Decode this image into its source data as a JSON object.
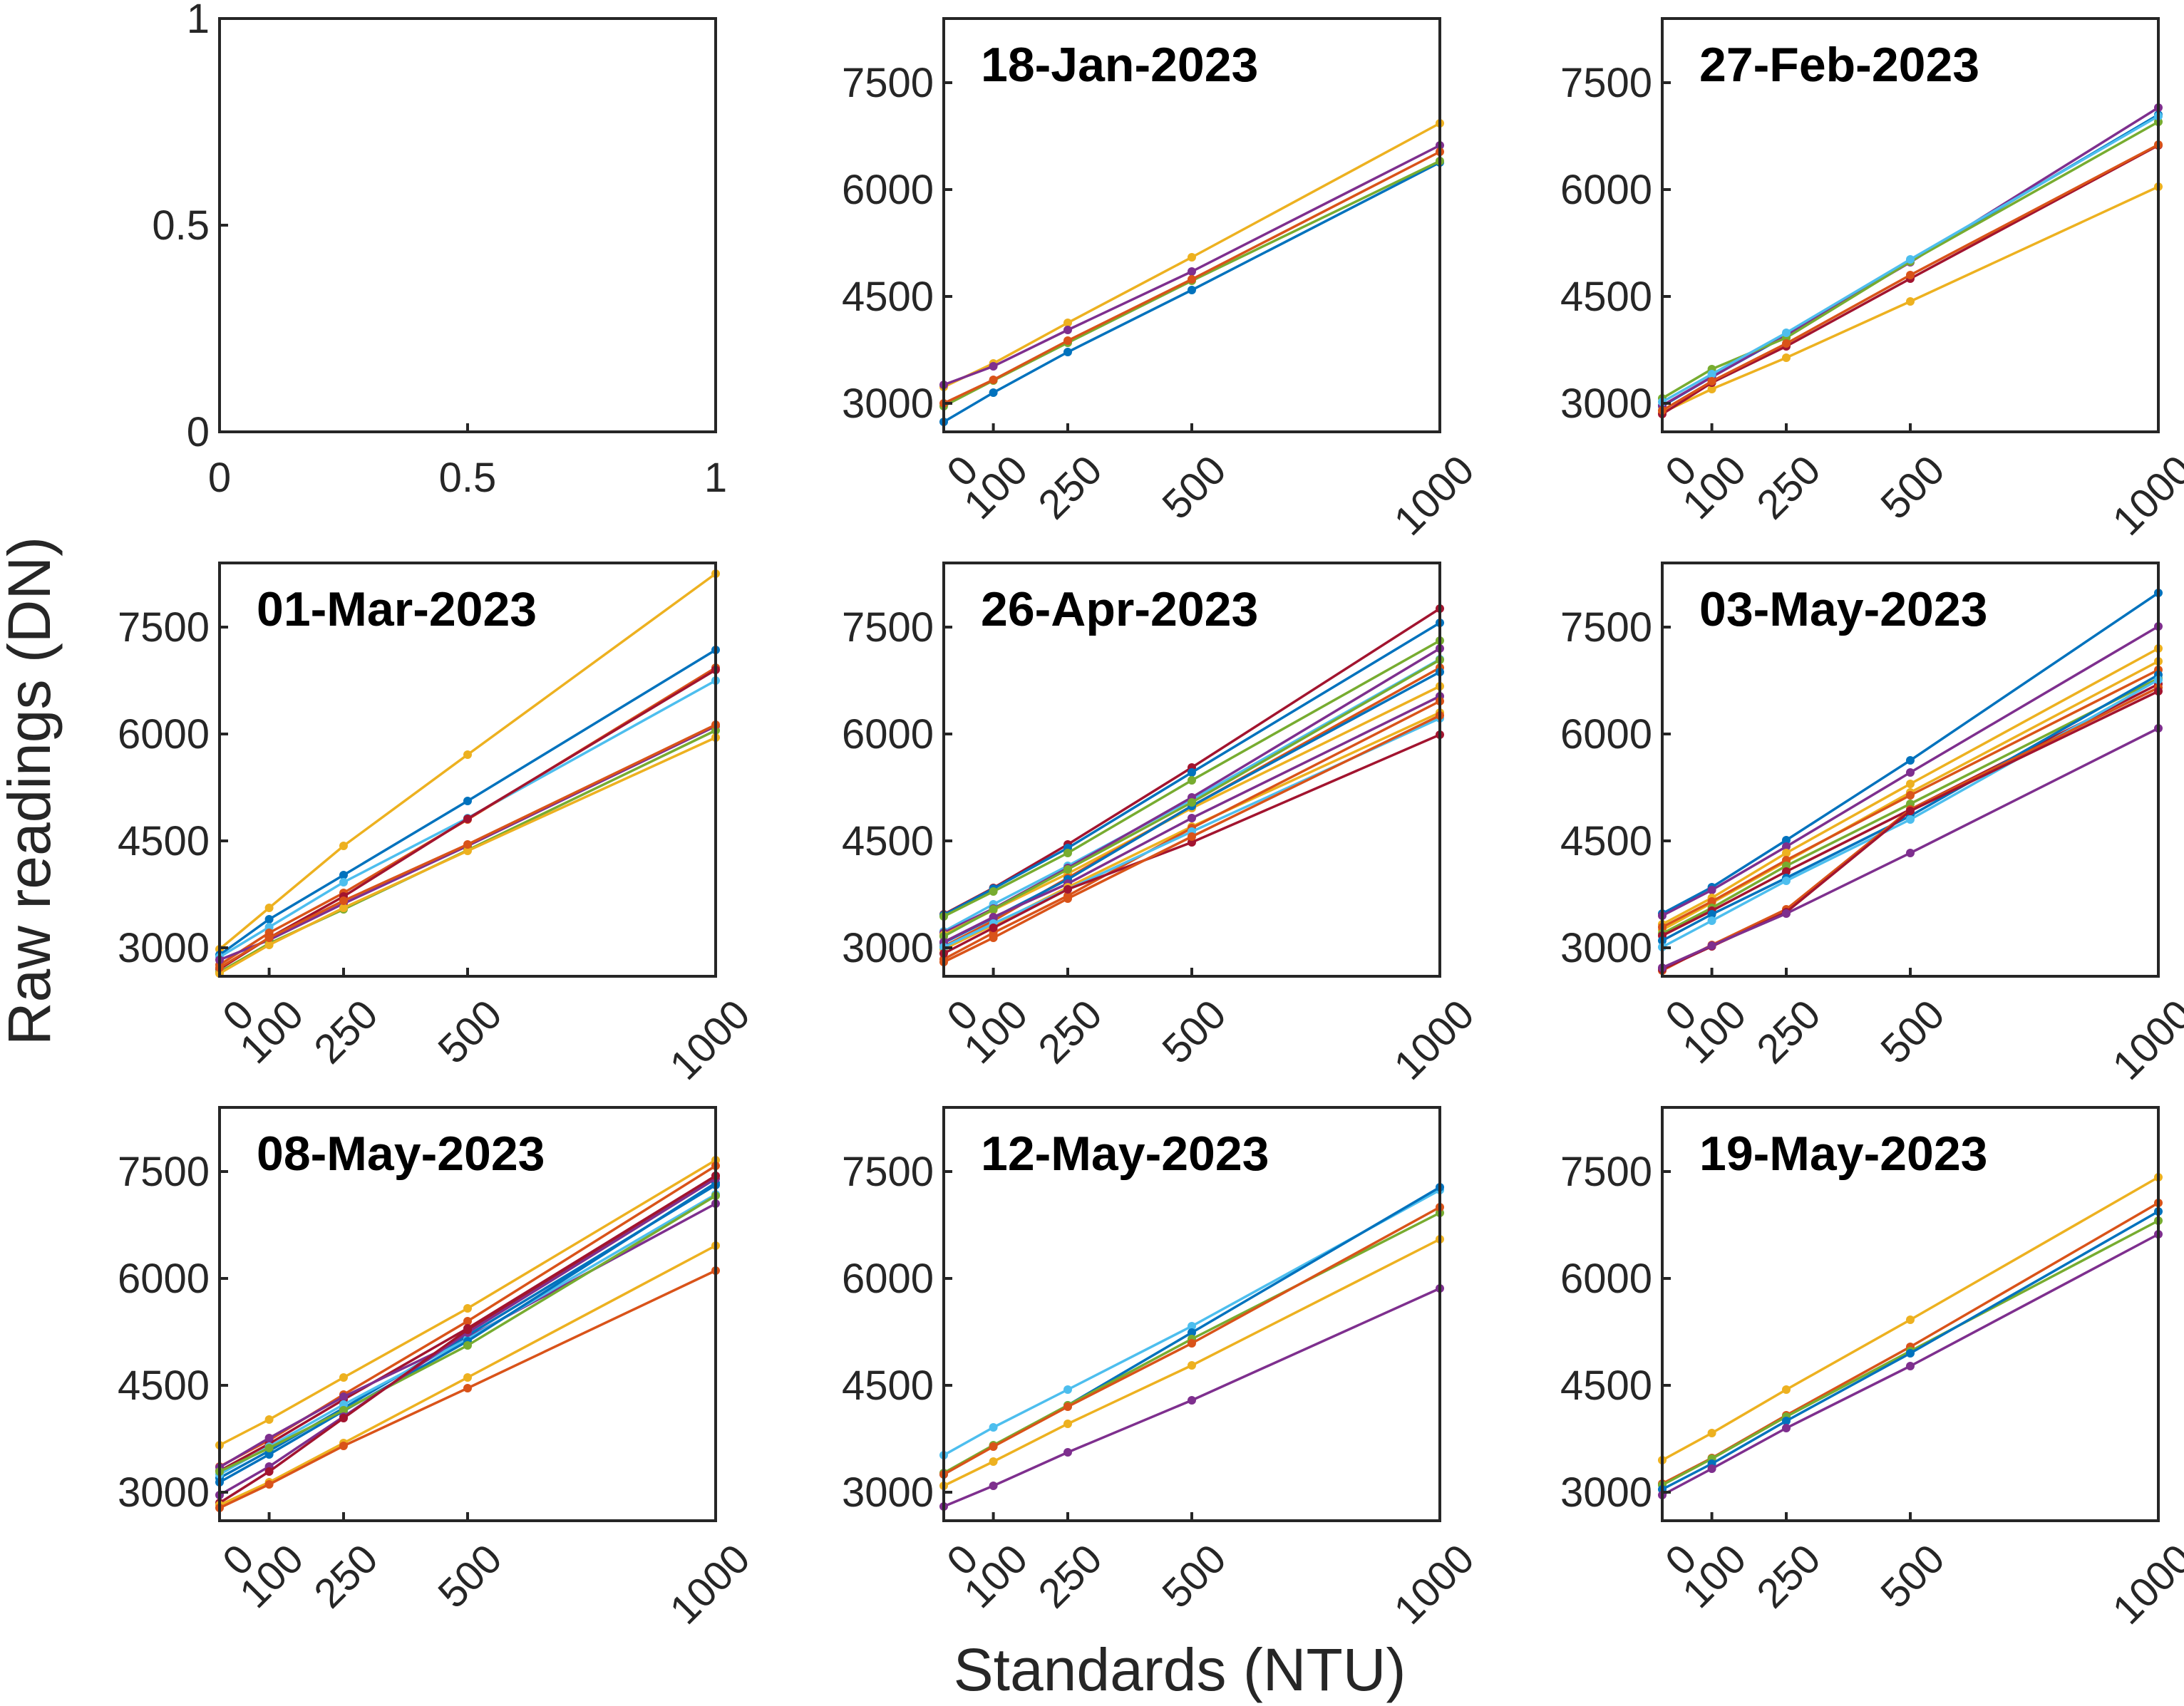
{
  "chart_data": {
    "type": "line",
    "ylabel": "Raw readings (DN)",
    "xlabel": "Standards (NTU)",
    "x": [
      0,
      100,
      250,
      500,
      1000
    ],
    "xlim": [
      0,
      1000
    ],
    "ylim": [
      2600,
      8400
    ],
    "yticks": [
      3000,
      4500,
      6000,
      7500
    ],
    "xticks": [
      0,
      100,
      250,
      500,
      1000
    ],
    "tick_rotation": 45,
    "grid": false,
    "legend": "none",
    "empty_axes": {
      "xticks": [
        "0",
        "0.5",
        "1"
      ],
      "yticks": [
        "0",
        "0.5",
        "1"
      ]
    },
    "colors": [
      "#0072BD",
      "#D95319",
      "#EDB120",
      "#7E2F8E",
      "#77AC30",
      "#4DBEEE",
      "#A2142F"
    ],
    "panels": [
      {
        "title": "18-Jan-2023",
        "series": [
          {
            "color": "#0072BD",
            "values": [
              2740,
              3150,
              3720,
              4590,
              6380
            ]
          },
          {
            "color": "#EDB120",
            "values": [
              3230,
              3560,
              4130,
              5050,
              6930
            ]
          },
          {
            "color": "#77AC30",
            "values": [
              2960,
              3320,
              3850,
              4720,
              6400
            ]
          },
          {
            "color": "#7E2F8E",
            "values": [
              3260,
              3520,
              4030,
              4850,
              6620
            ]
          },
          {
            "color": "#D95319",
            "values": [
              3000,
              3330,
              3880,
              4740,
              6530
            ]
          }
        ]
      },
      {
        "title": "27-Feb-2023",
        "series": [
          {
            "color": "#0072BD",
            "values": [
              2960,
              3370,
              3950,
              5000,
              7050
            ]
          },
          {
            "color": "#EDB120",
            "values": [
              2870,
              3200,
              3640,
              4430,
              6040
            ]
          },
          {
            "color": "#7E2F8E",
            "values": [
              2970,
              3370,
              3960,
              4980,
              7150
            ]
          },
          {
            "color": "#77AC30",
            "values": [
              3070,
              3480,
              3920,
              4990,
              6950
            ]
          },
          {
            "color": "#4DBEEE",
            "values": [
              3020,
              3410,
              3990,
              5020,
              7030
            ]
          },
          {
            "color": "#A2142F",
            "values": [
              2850,
              3290,
              3800,
              4750,
              6620
            ]
          },
          {
            "color": "#D95319",
            "values": [
              2900,
              3310,
              3840,
              4800,
              6630
            ]
          }
        ]
      },
      {
        "title": "01-Mar-2023",
        "series": [
          {
            "color": "#EDB120",
            "values": [
              2980,
              3560,
              4430,
              5710,
              8250
            ]
          },
          {
            "color": "#0072BD",
            "values": [
              2900,
              3400,
              4020,
              5060,
              7180
            ]
          },
          {
            "color": "#4DBEEE",
            "values": [
              2870,
              3290,
              3920,
              4820,
              6750
            ]
          },
          {
            "color": "#D95319",
            "values": [
              2760,
              3210,
              3770,
              4800,
              6930
            ]
          },
          {
            "color": "#A2142F",
            "values": [
              2700,
              3140,
              3720,
              4810,
              6900
            ]
          },
          {
            "color": "#7E2F8E",
            "values": [
              2830,
              3110,
              3620,
              4430,
              6110
            ]
          },
          {
            "color": "#77AC30",
            "values": [
              2660,
              3060,
              3540,
              4370,
              6050
            ]
          },
          {
            "color": "#EDB120",
            "values": [
              2640,
              3040,
              3560,
              4360,
              5950
            ]
          },
          {
            "color": "#D95319",
            "values": [
              2720,
              3140,
              3660,
              4450,
              6130
            ]
          }
        ]
      },
      {
        "title": "26-Apr-2023",
        "series": [
          {
            "color": "#A2142F",
            "values": [
              3470,
              3840,
              4450,
              5530,
              7760
            ]
          },
          {
            "color": "#0072BD",
            "values": [
              3460,
              3830,
              4400,
              5460,
              7560
            ]
          },
          {
            "color": "#77AC30",
            "values": [
              3440,
              3790,
              4330,
              5350,
              7310
            ]
          },
          {
            "color": "#4DBEEE",
            "values": [
              3230,
              3610,
              4150,
              5080,
              7050
            ]
          },
          {
            "color": "#7E2F8E",
            "values": [
              3210,
              3550,
              4120,
              5110,
              7200
            ]
          },
          {
            "color": "#EDB120",
            "values": [
              3180,
              3530,
              4040,
              4960,
              6670
            ]
          },
          {
            "color": "#D95319",
            "values": [
              3020,
              3380,
              3980,
              4990,
              6930
            ]
          },
          {
            "color": "#0072BD",
            "values": [
              3070,
              3420,
              3960,
              4990,
              6870
            ]
          },
          {
            "color": "#77AC30",
            "values": [
              3160,
              3540,
              4100,
              5040,
              7040
            ]
          },
          {
            "color": "#7E2F8E",
            "values": [
              3080,
              3430,
              3900,
              4820,
              6530
            ]
          },
          {
            "color": "#EDB120",
            "values": [
              2980,
              3320,
              3850,
              4700,
              6300
            ]
          },
          {
            "color": "#D95319",
            "values": [
              2840,
              3210,
              3730,
              4680,
              6460
            ]
          },
          {
            "color": "#4DBEEE",
            "values": [
              3010,
              3340,
              3820,
              4630,
              6220
            ]
          },
          {
            "color": "#A2142F",
            "values": [
              2920,
              3280,
              3820,
              4480,
              5990
            ]
          },
          {
            "color": "#D95319",
            "values": [
              2800,
              3140,
              3690,
              4560,
              6260
            ]
          }
        ]
      },
      {
        "title": "03-May-2023",
        "series": [
          {
            "color": "#0072BD",
            "values": [
              3480,
              3850,
              4510,
              5630,
              7980
            ]
          },
          {
            "color": "#7E2F8E",
            "values": [
              3450,
              3810,
              4420,
              5460,
              7510
            ]
          },
          {
            "color": "#EDB120",
            "values": [
              3330,
              3700,
              4330,
              5300,
              7200
            ]
          },
          {
            "color": "#EDB120",
            "values": [
              3250,
              3630,
              4210,
              5180,
              7020
            ]
          },
          {
            "color": "#D95319",
            "values": [
              3290,
              3650,
              4230,
              5140,
              6900
            ]
          },
          {
            "color": "#77AC30",
            "values": [
              3200,
              3560,
              4150,
              5020,
              6780
            ]
          },
          {
            "color": "#A2142F",
            "values": [
              3170,
              3520,
              4070,
              4940,
              6700
            ]
          },
          {
            "color": "#0072BD",
            "values": [
              3100,
              3470,
              3980,
              4850,
              6830
            ]
          },
          {
            "color": "#4DBEEE",
            "values": [
              3010,
              3380,
              3940,
              4800,
              6760
            ]
          },
          {
            "color": "#D95319",
            "values": [
              2680,
              3040,
              3540,
              4940,
              6650
            ]
          },
          {
            "color": "#A2142F",
            "values": [
              2700,
              3020,
              3500,
              4920,
              6600
            ]
          },
          {
            "color": "#7E2F8E",
            "values": [
              2720,
              3030,
              3480,
              4330,
              6080
            ]
          }
        ]
      },
      {
        "title": "08-May-2023",
        "series": [
          {
            "color": "#EDB120",
            "values": [
              3660,
              4020,
              4610,
              5580,
              7660
            ]
          },
          {
            "color": "#D95319",
            "values": [
              3360,
              3730,
              4370,
              5400,
              7580
            ]
          },
          {
            "color": "#A2142F",
            "values": [
              3300,
              3680,
              4300,
              5300,
              7440
            ]
          },
          {
            "color": "#7E2F8E",
            "values": [
              3350,
              3760,
              4340,
              5170,
              7050
            ]
          },
          {
            "color": "#0072BD",
            "values": [
              3200,
              3580,
              4180,
              5200,
              7310
            ]
          },
          {
            "color": "#4DBEEE",
            "values": [
              3250,
              3640,
              4230,
              5150,
              7180
            ]
          },
          {
            "color": "#0072BD",
            "values": [
              3140,
              3530,
              4140,
              5120,
              7340
            ]
          },
          {
            "color": "#77AC30",
            "values": [
              3290,
              3620,
              4150,
              5060,
              7160
            ]
          },
          {
            "color": "#7E2F8E",
            "values": [
              2960,
              3360,
              4060,
              5240,
              7400
            ]
          },
          {
            "color": "#A2142F",
            "values": [
              2850,
              3290,
              4040,
              5280,
              7440
            ]
          },
          {
            "color": "#EDB120",
            "values": [
              2820,
              3140,
              3690,
              4610,
              6460
            ]
          },
          {
            "color": "#D95319",
            "values": [
              2780,
              3110,
              3650,
              4460,
              6110
            ]
          }
        ]
      },
      {
        "title": "12-May-2023",
        "series": [
          {
            "color": "#4DBEEE",
            "values": [
              3520,
              3910,
              4440,
              5330,
              7240
            ]
          },
          {
            "color": "#0072BD",
            "values": [
              3250,
              3650,
              4220,
              5240,
              7280
            ]
          },
          {
            "color": "#77AC30",
            "values": [
              3270,
              3660,
              4220,
              5150,
              6920
            ]
          },
          {
            "color": "#D95319",
            "values": [
              3250,
              3640,
              4200,
              5090,
              7000
            ]
          },
          {
            "color": "#EDB120",
            "values": [
              3090,
              3430,
              3960,
              4780,
              6550
            ]
          },
          {
            "color": "#7E2F8E",
            "values": [
              2800,
              3090,
              3560,
              4290,
              5860
            ]
          }
        ]
      },
      {
        "title": "19-May-2023",
        "series": [
          {
            "color": "#EDB120",
            "values": [
              3450,
              3830,
              4440,
              5420,
              7420
            ]
          },
          {
            "color": "#D95319",
            "values": [
              3120,
              3480,
              4080,
              5040,
              7060
            ]
          },
          {
            "color": "#77AC30",
            "values": [
              3100,
              3470,
              4060,
              4980,
              6810
            ]
          },
          {
            "color": "#0072BD",
            "values": [
              3040,
              3400,
              4000,
              4950,
              6940
            ]
          },
          {
            "color": "#7E2F8E",
            "values": [
              2960,
              3330,
              3900,
              4770,
              6620
            ]
          }
        ]
      }
    ]
  }
}
